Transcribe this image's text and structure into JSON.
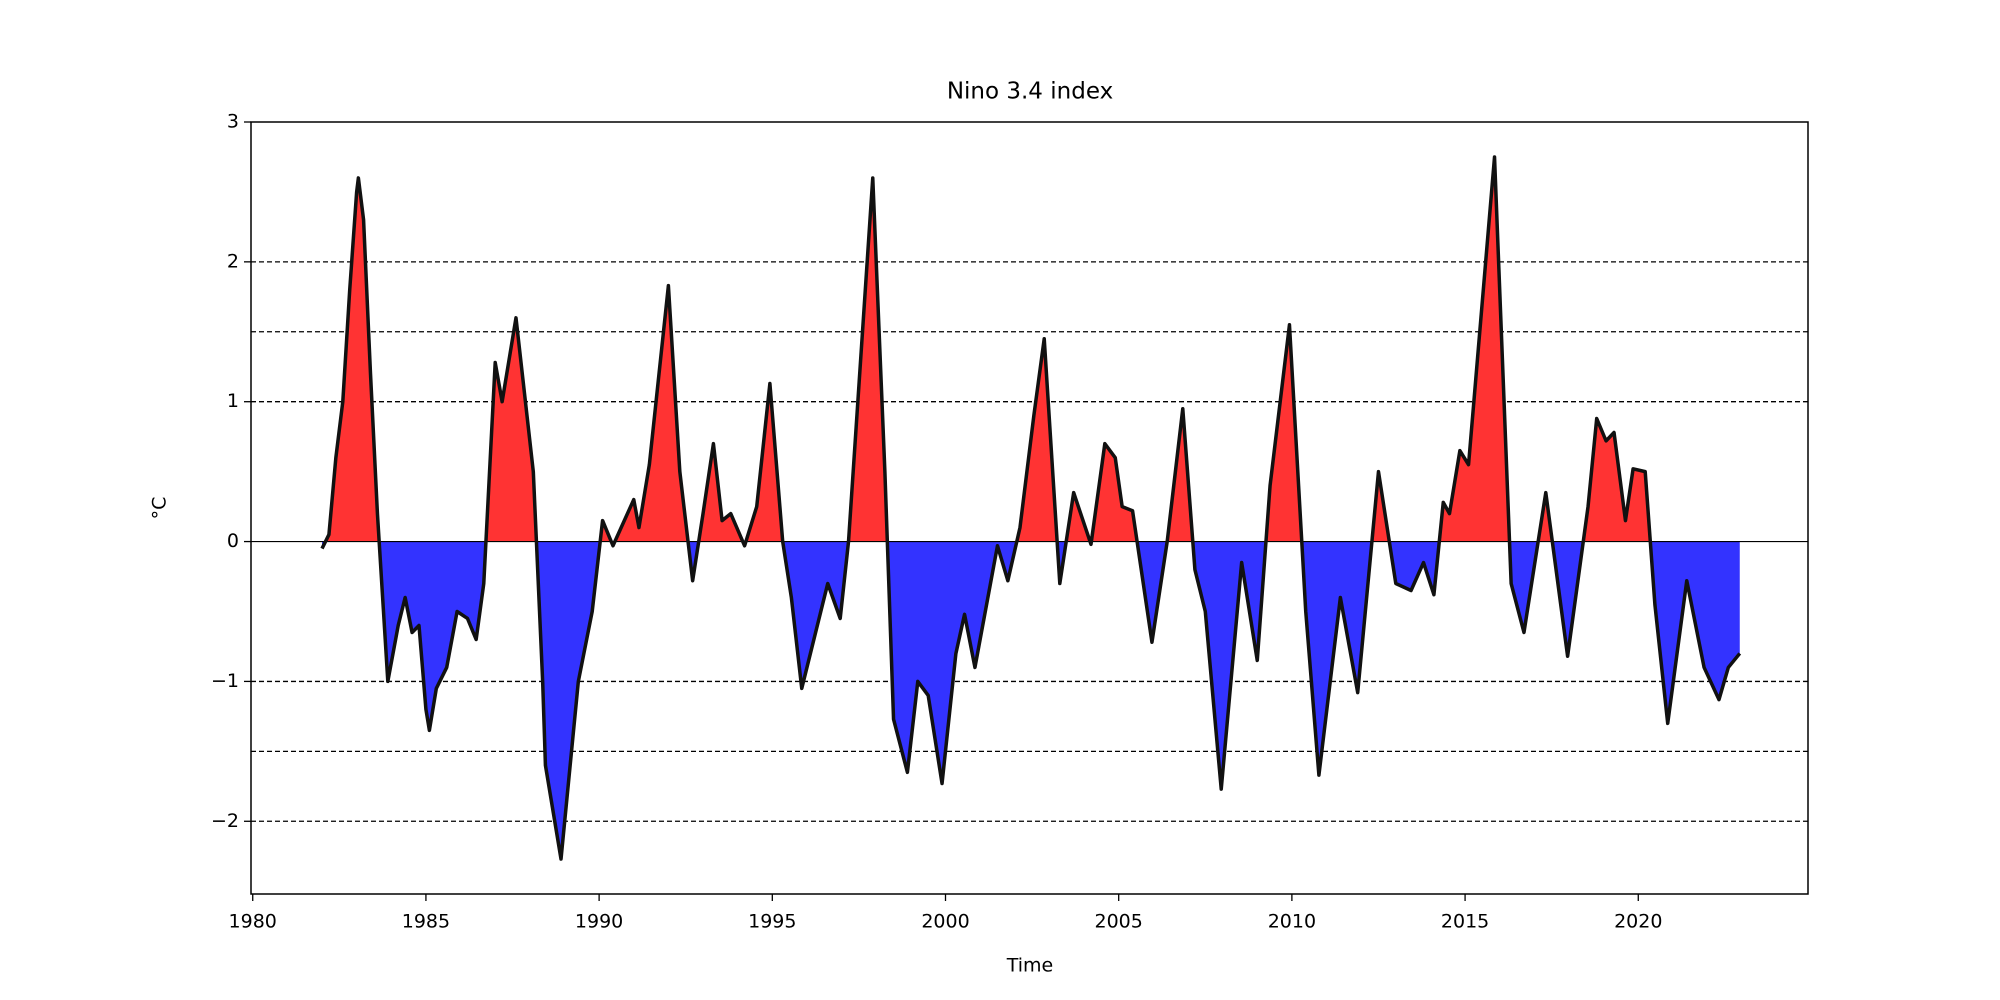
{
  "chart_data": {
    "type": "area",
    "title": "Nino 3.4 index",
    "xlabel": "Time",
    "ylabel": "°C",
    "xlim": [
      1979.95,
      2024.9
    ],
    "ylim": [
      -2.52,
      3
    ],
    "xticks": [
      1980,
      1985,
      1990,
      1995,
      2000,
      2005,
      2010,
      2015,
      2020
    ],
    "yticks": [
      -2,
      -1,
      0,
      1,
      2,
      3
    ],
    "reference_lines": [
      -2,
      -1.5,
      -1,
      1,
      1.5,
      2
    ],
    "positive_color": "#ff3333",
    "negative_color": "#3333ff",
    "line_color": "#111111",
    "x": [
      1982.0,
      1982.2,
      1982.4,
      1982.6,
      1982.8,
      1983.0,
      1983.05,
      1983.2,
      1983.4,
      1983.6,
      1983.75,
      1983.9,
      1984.2,
      1984.4,
      1984.6,
      1984.8,
      1985.0,
      1985.1,
      1985.3,
      1985.6,
      1985.9,
      1986.2,
      1986.45,
      1986.67,
      1987.0,
      1987.2,
      1987.6,
      1988.1,
      1988.37,
      1988.45,
      1988.9,
      1989.4,
      1989.8,
      1990.1,
      1990.4,
      1991.0,
      1991.15,
      1991.45,
      1992.0,
      1992.33,
      1992.7,
      1993.0,
      1993.3,
      1993.55,
      1993.8,
      1994.2,
      1994.55,
      1994.93,
      1995.3,
      1995.55,
      1995.85,
      1996.6,
      1996.96,
      1997.2,
      1997.9,
      1998.25,
      1998.5,
      1998.9,
      1999.2,
      1999.5,
      1999.9,
      2000.3,
      2000.55,
      2000.85,
      2001.5,
      2001.8,
      2002.15,
      2002.55,
      2002.85,
      2003.3,
      2003.7,
      2004.2,
      2004.6,
      2004.9,
      2005.1,
      2005.4,
      2005.96,
      2006.4,
      2006.85,
      2007.2,
      2007.5,
      2007.96,
      2008.55,
      2009.0,
      2009.37,
      2009.93,
      2010.4,
      2010.78,
      2011.4,
      2011.9,
      2012.5,
      2013.0,
      2013.44,
      2013.8,
      2014.1,
      2014.37,
      2014.55,
      2014.85,
      2015.1,
      2015.85,
      2016.33,
      2016.7,
      2017.33,
      2017.96,
      2018.55,
      2018.8,
      2019.07,
      2019.3,
      2019.63,
      2019.85,
      2020.2,
      2020.48,
      2020.85,
      2021.4,
      2021.9,
      2022.33,
      2022.6,
      2022.93
    ],
    "values": [
      -0.05,
      0.05,
      0.6,
      1.0,
      1.8,
      2.5,
      2.6,
      2.3,
      1.2,
      0.2,
      -0.4,
      -1.0,
      -0.6,
      -0.4,
      -0.65,
      -0.6,
      -1.2,
      -1.35,
      -1.05,
      -0.9,
      -0.5,
      -0.55,
      -0.7,
      -0.3,
      1.28,
      1.0,
      1.6,
      0.5,
      -1.0,
      -1.6,
      -2.27,
      -1.0,
      -0.5,
      0.15,
      -0.03,
      0.3,
      0.1,
      0.55,
      1.83,
      0.5,
      -0.28,
      0.2,
      0.7,
      0.15,
      0.2,
      -0.03,
      0.25,
      1.13,
      0.0,
      -0.4,
      -1.05,
      -0.3,
      -0.55,
      0.0,
      2.6,
      0.5,
      -1.27,
      -1.65,
      -1.0,
      -1.1,
      -1.73,
      -0.8,
      -0.52,
      -0.9,
      -0.03,
      -0.28,
      0.1,
      0.9,
      1.45,
      -0.3,
      0.35,
      -0.02,
      0.7,
      0.6,
      0.25,
      0.22,
      -0.72,
      0.0,
      0.95,
      -0.2,
      -0.5,
      -1.77,
      -0.15,
      -0.85,
      0.4,
      1.55,
      -0.5,
      -1.67,
      -0.4,
      -1.08,
      0.5,
      -0.3,
      -0.35,
      -0.15,
      -0.38,
      0.28,
      0.2,
      0.65,
      0.55,
      2.75,
      -0.3,
      -0.65,
      0.35,
      -0.82,
      0.25,
      0.88,
      0.72,
      0.78,
      0.15,
      0.52,
      0.5,
      -0.45,
      -1.3,
      -0.28,
      -0.9,
      -1.13,
      -0.9,
      -0.8
    ]
  }
}
